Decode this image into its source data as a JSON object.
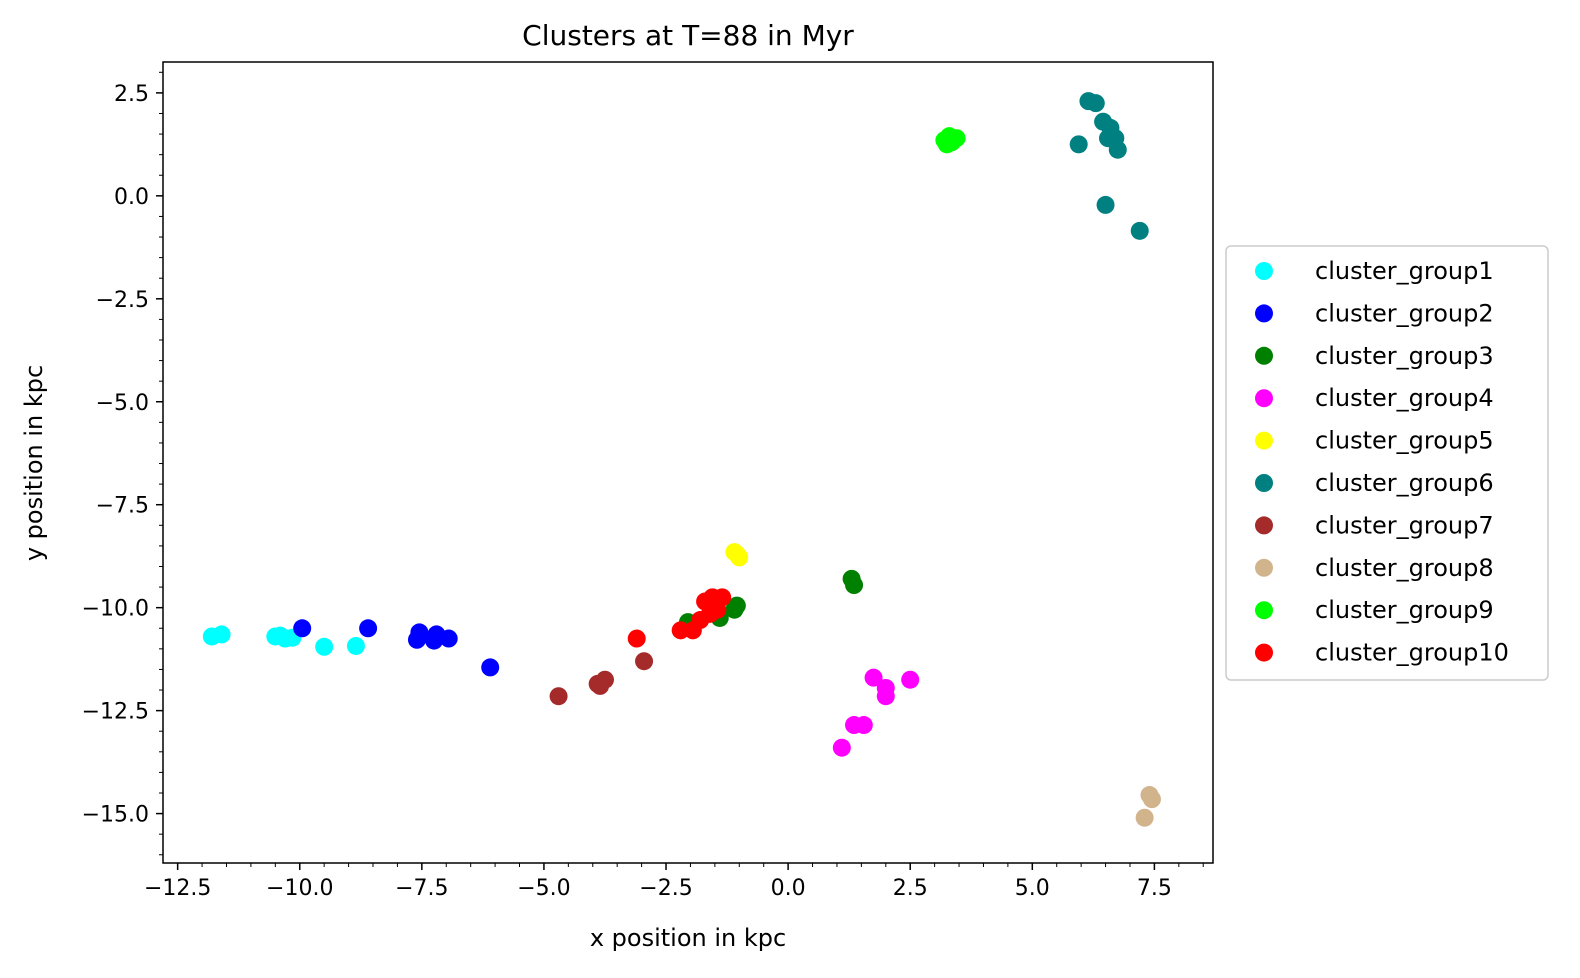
{
  "chart_data": {
    "type": "scatter",
    "title": "Clusters at T=88 in Myr",
    "xlabel": "x position in kpc",
    "ylabel": "y position in kpc",
    "xlim": [
      -12.8,
      8.7
    ],
    "ylim": [
      -16.2,
      3.25
    ],
    "xticks": [
      -12.5,
      -10.0,
      -7.5,
      -5.0,
      -2.5,
      0.0,
      2.5,
      5.0,
      7.5
    ],
    "xtick_labels": [
      "−12.5",
      "−10.0",
      "−7.5",
      "−5.0",
      "−2.5",
      "0.0",
      "2.5",
      "5.0",
      "7.5"
    ],
    "yticks": [
      2.5,
      0.0,
      -2.5,
      -5.0,
      -7.5,
      -10.0,
      -12.5,
      -15.0
    ],
    "ytick_labels": [
      "2.5",
      "0.0",
      "−2.5",
      "−5.0",
      "−7.5",
      "−10.0",
      "−12.5",
      "−15.0"
    ],
    "minor_ticks": true,
    "grid": false,
    "legend_position": "outside-right",
    "series": [
      {
        "name": "cluster_group1",
        "color": "#00ffff",
        "x": [
          -11.8,
          -11.6,
          -10.5,
          -10.4,
          -10.3,
          -10.15,
          -9.5,
          -8.85
        ],
        "y": [
          -10.7,
          -10.65,
          -10.7,
          -10.68,
          -10.75,
          -10.73,
          -10.95,
          -10.93
        ]
      },
      {
        "name": "cluster_group2",
        "color": "#0000ff",
        "x": [
          -9.95,
          -8.6,
          -7.6,
          -7.55,
          -7.25,
          -7.2,
          -6.95,
          -6.1
        ],
        "y": [
          -10.5,
          -10.5,
          -10.78,
          -10.6,
          -10.8,
          -10.65,
          -10.75,
          -11.45
        ]
      },
      {
        "name": "cluster_group3",
        "color": "#008000",
        "x": [
          -2.05,
          -1.4,
          -1.1,
          -1.05,
          1.3,
          1.35
        ],
        "y": [
          -10.35,
          -10.25,
          -10.05,
          -9.95,
          -9.3,
          -9.45
        ]
      },
      {
        "name": "cluster_group4",
        "color": "#ff00ff",
        "x": [
          1.1,
          1.35,
          1.55,
          1.75,
          2.0,
          2.0,
          2.5
        ],
        "y": [
          -13.4,
          -12.85,
          -12.85,
          -11.7,
          -11.95,
          -12.15,
          -11.75
        ]
      },
      {
        "name": "cluster_group5",
        "color": "#ffff00",
        "x": [
          -1.1,
          -1.05,
          -1.0
        ],
        "y": [
          -8.65,
          -8.7,
          -8.78
        ]
      },
      {
        "name": "cluster_group6",
        "color": "#008080",
        "x": [
          6.15,
          6.3,
          6.45,
          6.6,
          6.55,
          6.75,
          5.95,
          6.5,
          7.2,
          6.7
        ],
        "y": [
          2.3,
          2.25,
          1.8,
          1.65,
          1.4,
          1.12,
          1.25,
          -0.22,
          -0.85,
          1.4
        ]
      },
      {
        "name": "cluster_group7",
        "color": "#a52a2a",
        "x": [
          -4.7,
          -3.9,
          -3.75,
          -2.95,
          -3.85
        ],
        "y": [
          -12.15,
          -11.85,
          -11.75,
          -11.3,
          -11.9
        ]
      },
      {
        "name": "cluster_group8",
        "color": "#d2b48c",
        "x": [
          7.4,
          7.45,
          7.3
        ],
        "y": [
          -14.55,
          -14.65,
          -15.1
        ]
      },
      {
        "name": "cluster_group9",
        "color": "#00ff00",
        "x": [
          3.2,
          3.3,
          3.35,
          3.45,
          3.25
        ],
        "y": [
          1.35,
          1.45,
          1.3,
          1.4,
          1.25
        ]
      },
      {
        "name": "cluster_group10",
        "color": "#ff0000",
        "x": [
          -3.1,
          -2.2,
          -1.95,
          -1.8,
          -1.7,
          -1.55,
          -1.45,
          -1.35,
          -1.6
        ],
        "y": [
          -10.75,
          -10.55,
          -10.55,
          -10.3,
          -9.85,
          -9.75,
          -10.05,
          -9.75,
          -10.15
        ]
      }
    ]
  }
}
